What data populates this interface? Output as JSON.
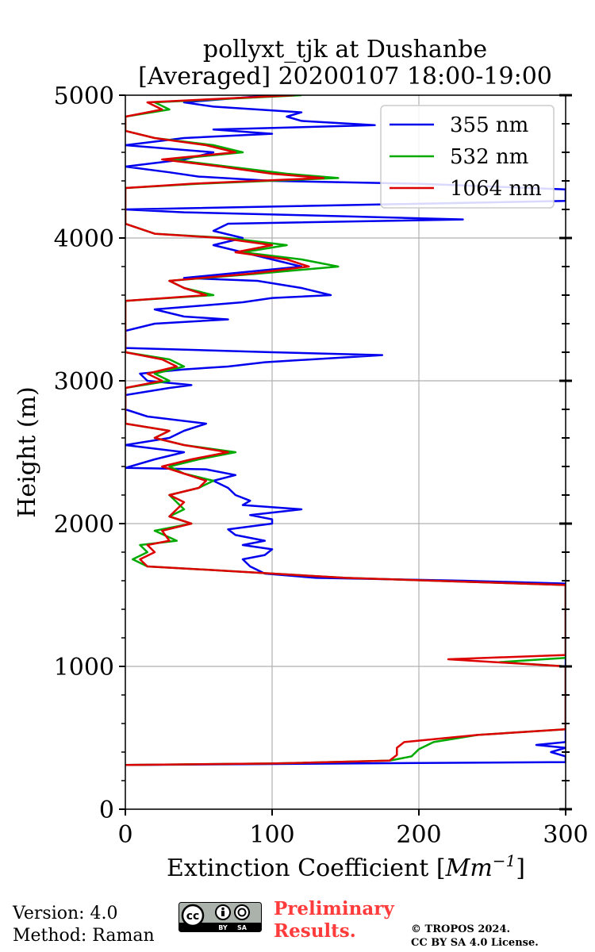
{
  "chart_data": {
    "type": "line",
    "title_line1": "pollyxt_tjk at Dushanbe",
    "title_line2": "[Averaged] 20200107 18:00-19:00",
    "xlabel_prefix": "Extinction Coefficient [",
    "xlabel_unit": "Mm",
    "xlabel_exp": "−1",
    "xlabel_suffix": "]",
    "ylabel": "Height (m)",
    "xlim": [
      0,
      300
    ],
    "ylim": [
      0,
      5000
    ],
    "x_ticks": [
      0,
      100,
      200,
      300
    ],
    "y_ticks": [
      0,
      1000,
      2000,
      3000,
      4000,
      5000
    ],
    "y_minor_step": 200,
    "grid": true,
    "legend_position": "top-right",
    "series": [
      {
        "name": "355 nm",
        "color": "#0000ee",
        "points": [
          [
            0,
            310
          ],
          [
            150,
            320
          ],
          [
            300,
            330
          ],
          [
            300,
            370
          ],
          [
            290,
            400
          ],
          [
            300,
            430
          ],
          [
            280,
            450
          ],
          [
            300,
            470
          ],
          [
            300,
            540
          ],
          [
            300,
            600
          ],
          [
            300,
            1000
          ],
          [
            300,
            1500
          ],
          [
            300,
            1580
          ],
          [
            230,
            1600
          ],
          [
            130,
            1620
          ],
          [
            95,
            1650
          ],
          [
            85,
            1700
          ],
          [
            80,
            1750
          ],
          [
            95,
            1780
          ],
          [
            100,
            1820
          ],
          [
            80,
            1850
          ],
          [
            95,
            1880
          ],
          [
            75,
            1920
          ],
          [
            70,
            1960
          ],
          [
            100,
            2000
          ],
          [
            100,
            2030
          ],
          [
            85,
            2060
          ],
          [
            120,
            2100
          ],
          [
            80,
            2130
          ],
          [
            85,
            2160
          ],
          [
            75,
            2200
          ],
          [
            70,
            2250
          ],
          [
            60,
            2300
          ],
          [
            75,
            2340
          ],
          [
            55,
            2380
          ],
          [
            0,
            2390
          ],
          [
            20,
            2450
          ],
          [
            40,
            2500
          ],
          [
            0,
            2550
          ],
          [
            30,
            2600
          ],
          [
            40,
            2650
          ],
          [
            55,
            2700
          ],
          [
            15,
            2750
          ],
          [
            0,
            2800
          ],
          [
            0,
            2850
          ],
          [
            0,
            2900
          ],
          [
            30,
            2950
          ],
          [
            45,
            2970
          ],
          [
            15,
            3000
          ],
          [
            10,
            3050
          ],
          [
            40,
            3080
          ],
          [
            70,
            3100
          ],
          [
            95,
            3130
          ],
          [
            175,
            3180
          ],
          [
            100,
            3200
          ],
          [
            0,
            3230
          ],
          [
            0,
            3300
          ],
          [
            0,
            3350
          ],
          [
            20,
            3400
          ],
          [
            70,
            3430
          ],
          [
            40,
            3450
          ],
          [
            20,
            3500
          ],
          [
            80,
            3550
          ],
          [
            100,
            3580
          ],
          [
            140,
            3600
          ],
          [
            120,
            3650
          ],
          [
            90,
            3700
          ],
          [
            40,
            3720
          ],
          [
            70,
            3750
          ],
          [
            120,
            3800
          ],
          [
            100,
            3850
          ],
          [
            80,
            3900
          ],
          [
            60,
            3950
          ],
          [
            80,
            4000
          ],
          [
            60,
            4050
          ],
          [
            70,
            4100
          ],
          [
            230,
            4130
          ],
          [
            120,
            4160
          ],
          [
            40,
            4180
          ],
          [
            0,
            4200
          ],
          [
            300,
            4260
          ],
          [
            300,
            4340
          ],
          [
            200,
            4380
          ],
          [
            100,
            4400
          ],
          [
            50,
            4430
          ],
          [
            30,
            4460
          ],
          [
            0,
            4500
          ],
          [
            40,
            4550
          ],
          [
            60,
            4600
          ],
          [
            0,
            4650
          ],
          [
            40,
            4700
          ],
          [
            100,
            4730
          ],
          [
            60,
            4760
          ],
          [
            170,
            4790
          ],
          [
            120,
            4820
          ],
          [
            110,
            4850
          ],
          [
            120,
            4880
          ],
          [
            60,
            4920
          ],
          [
            40,
            4950
          ],
          [
            100,
            5000
          ]
        ]
      },
      {
        "name": "532 nm",
        "color": "#00aa00",
        "points": [
          [
            0,
            310
          ],
          [
            100,
            320
          ],
          [
            180,
            340
          ],
          [
            195,
            370
          ],
          [
            200,
            420
          ],
          [
            210,
            470
          ],
          [
            240,
            520
          ],
          [
            300,
            560
          ],
          [
            300,
            1000
          ],
          [
            255,
            1030
          ],
          [
            300,
            1060
          ],
          [
            300,
            1100
          ],
          [
            300,
            1570
          ],
          [
            150,
            1620
          ],
          [
            50,
            1680
          ],
          [
            15,
            1700
          ],
          [
            5,
            1750
          ],
          [
            15,
            1800
          ],
          [
            10,
            1850
          ],
          [
            35,
            1880
          ],
          [
            20,
            1950
          ],
          [
            45,
            2000
          ],
          [
            30,
            2050
          ],
          [
            40,
            2100
          ],
          [
            35,
            2150
          ],
          [
            30,
            2200
          ],
          [
            50,
            2250
          ],
          [
            60,
            2300
          ],
          [
            40,
            2350
          ],
          [
            30,
            2400
          ],
          [
            50,
            2450
          ],
          [
            75,
            2500
          ],
          [
            40,
            2550
          ],
          [
            20,
            2600
          ],
          [
            30,
            2650
          ],
          [
            0,
            2700
          ],
          [
            0,
            2750
          ],
          [
            0,
            2800
          ],
          [
            0,
            2900
          ],
          [
            0,
            2950
          ],
          [
            30,
            3000
          ],
          [
            20,
            3050
          ],
          [
            40,
            3100
          ],
          [
            30,
            3150
          ],
          [
            0,
            3200
          ],
          [
            0,
            3300
          ],
          [
            0,
            3400
          ],
          [
            0,
            3500
          ],
          [
            0,
            3560
          ],
          [
            60,
            3600
          ],
          [
            40,
            3650
          ],
          [
            30,
            3700
          ],
          [
            90,
            3750
          ],
          [
            145,
            3800
          ],
          [
            120,
            3850
          ],
          [
            80,
            3900
          ],
          [
            110,
            3950
          ],
          [
            70,
            4000
          ],
          [
            20,
            4030
          ],
          [
            0,
            4100
          ],
          [
            0,
            4200
          ],
          [
            0,
            4300
          ],
          [
            0,
            4350
          ],
          [
            50,
            4380
          ],
          [
            145,
            4420
          ],
          [
            110,
            4450
          ],
          [
            70,
            4500
          ],
          [
            30,
            4550
          ],
          [
            80,
            4600
          ],
          [
            60,
            4650
          ],
          [
            20,
            4700
          ],
          [
            0,
            4750
          ],
          [
            0,
            4800
          ],
          [
            0,
            4850
          ],
          [
            30,
            4900
          ],
          [
            20,
            4950
          ],
          [
            120,
            5000
          ]
        ]
      },
      {
        "name": "1064 nm",
        "color": "#dd0000",
        "points": [
          [
            0,
            310
          ],
          [
            100,
            320
          ],
          [
            180,
            340
          ],
          [
            185,
            380
          ],
          [
            185,
            430
          ],
          [
            190,
            470
          ],
          [
            240,
            520
          ],
          [
            300,
            560
          ],
          [
            300,
            1000
          ],
          [
            220,
            1050
          ],
          [
            300,
            1080
          ],
          [
            300,
            1100
          ],
          [
            300,
            1570
          ],
          [
            150,
            1620
          ],
          [
            50,
            1680
          ],
          [
            15,
            1700
          ],
          [
            10,
            1750
          ],
          [
            20,
            1800
          ],
          [
            15,
            1850
          ],
          [
            30,
            1880
          ],
          [
            25,
            1950
          ],
          [
            45,
            2000
          ],
          [
            30,
            2050
          ],
          [
            35,
            2100
          ],
          [
            40,
            2150
          ],
          [
            30,
            2200
          ],
          [
            50,
            2250
          ],
          [
            55,
            2300
          ],
          [
            40,
            2350
          ],
          [
            25,
            2400
          ],
          [
            45,
            2450
          ],
          [
            70,
            2500
          ],
          [
            40,
            2550
          ],
          [
            20,
            2600
          ],
          [
            30,
            2650
          ],
          [
            0,
            2700
          ],
          [
            0,
            2750
          ],
          [
            0,
            2800
          ],
          [
            0,
            2900
          ],
          [
            0,
            2950
          ],
          [
            25,
            3000
          ],
          [
            15,
            3050
          ],
          [
            35,
            3100
          ],
          [
            25,
            3150
          ],
          [
            0,
            3200
          ],
          [
            0,
            3300
          ],
          [
            0,
            3400
          ],
          [
            0,
            3500
          ],
          [
            0,
            3560
          ],
          [
            55,
            3600
          ],
          [
            40,
            3650
          ],
          [
            30,
            3700
          ],
          [
            85,
            3750
          ],
          [
            125,
            3800
          ],
          [
            110,
            3850
          ],
          [
            75,
            3900
          ],
          [
            100,
            3950
          ],
          [
            65,
            4000
          ],
          [
            20,
            4030
          ],
          [
            0,
            4100
          ],
          [
            0,
            4200
          ],
          [
            0,
            4300
          ],
          [
            0,
            4350
          ],
          [
            45,
            4380
          ],
          [
            135,
            4420
          ],
          [
            100,
            4450
          ],
          [
            65,
            4500
          ],
          [
            25,
            4550
          ],
          [
            75,
            4600
          ],
          [
            55,
            4650
          ],
          [
            20,
            4700
          ],
          [
            0,
            4750
          ],
          [
            0,
            4800
          ],
          [
            0,
            4850
          ],
          [
            25,
            4900
          ],
          [
            15,
            4950
          ],
          [
            115,
            5000
          ]
        ]
      }
    ]
  },
  "footer": {
    "version": "Version: 4.0",
    "method": "Method: Raman",
    "license_badge_left": "cc",
    "license_badge_by": "BY",
    "license_badge_sa": "SA",
    "preliminary_line1": "Preliminary",
    "preliminary_line2": "Results.",
    "copyright_line1": "© TROPOS 2024.",
    "copyright_line2": "CC BY SA 4.0 License."
  }
}
